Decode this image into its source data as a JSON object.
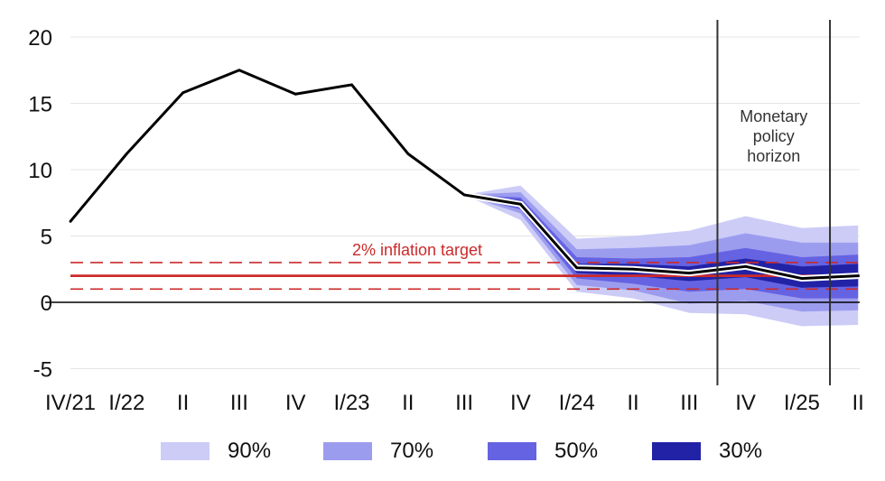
{
  "chart_data": {
    "type": "line",
    "x_categories": [
      "IV/21",
      "I/22",
      "II",
      "III",
      "IV",
      "I/23",
      "II",
      "III",
      "IV",
      "I/24",
      "II",
      "III",
      "IV",
      "I/25",
      "II"
    ],
    "ylim": [
      -5,
      21
    ],
    "yticks": [
      20,
      15,
      10,
      5,
      0,
      -5
    ],
    "grid": true,
    "series": [
      {
        "values": [
          6.1,
          11.2,
          15.8,
          17.5,
          15.7,
          16.4,
          11.2,
          8.1,
          7.4,
          2.6,
          2.5,
          2.2,
          2.7,
          1.8,
          2.0
        ]
      }
    ],
    "forecast_start_index": 7,
    "fan_bands": [
      {
        "name": "90%",
        "color": "#ccccf7",
        "lower": [
          8.1,
          6.2,
          0.8,
          0.3,
          -0.8,
          -0.9,
          -1.8,
          -1.7
        ],
        "upper": [
          8.1,
          8.8,
          4.8,
          5.0,
          5.4,
          6.5,
          5.6,
          5.8
        ]
      },
      {
        "name": "70%",
        "color": "#9c9cef",
        "lower": [
          8.1,
          6.7,
          1.3,
          0.9,
          -0.1,
          0.1,
          -0.7,
          -0.6
        ],
        "upper": [
          8.1,
          8.3,
          4.0,
          4.1,
          4.3,
          5.2,
          4.5,
          4.5
        ]
      },
      {
        "name": "50%",
        "color": "#6563e2",
        "lower": [
          8.1,
          7.0,
          1.8,
          1.4,
          0.8,
          1.0,
          0.3,
          0.3
        ],
        "upper": [
          8.1,
          7.9,
          3.4,
          3.3,
          3.4,
          4.1,
          3.4,
          3.6
        ]
      },
      {
        "name": "30%",
        "color": "#2222a6",
        "lower": [
          8.1,
          7.2,
          2.2,
          2.0,
          1.6,
          1.9,
          1.1,
          1.2
        ],
        "upper": [
          8.1,
          7.7,
          2.9,
          2.9,
          2.7,
          3.3,
          2.7,
          2.9
        ]
      }
    ],
    "inflation_target": {
      "value": 2,
      "lower": 1,
      "upper": 3,
      "label": "2% inflation target",
      "color": "#cc2a2a"
    },
    "policy_horizon": {
      "start_index": 11.5,
      "end_index": 13.5,
      "label": [
        "Monetary",
        "policy",
        "horizon"
      ]
    },
    "legend": [
      "90%",
      "70%",
      "50%",
      "30%"
    ],
    "legend_placement": "bottom"
  }
}
